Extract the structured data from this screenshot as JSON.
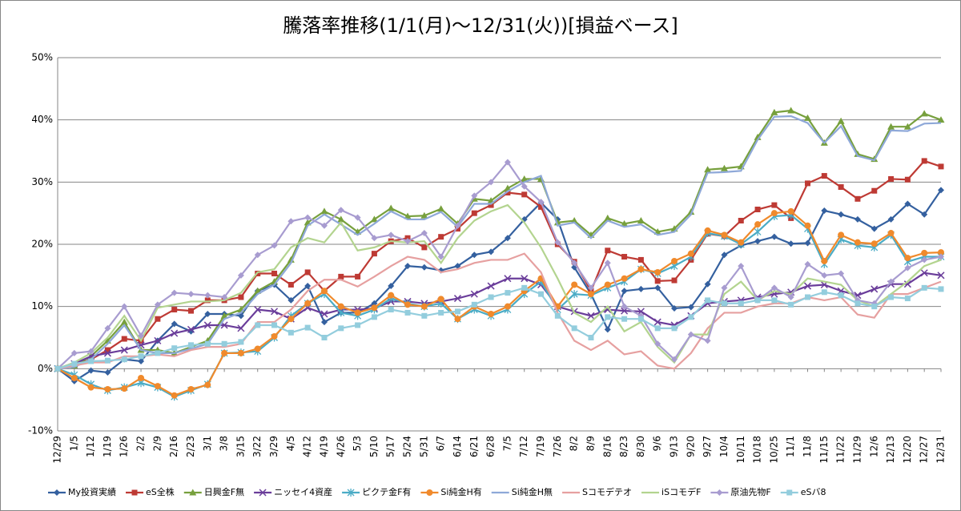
{
  "chart_data": {
    "type": "line",
    "title": "騰落率推移(1/1(月)～12/31(火))[損益ベース]",
    "categories": [
      "12/29",
      "1/5",
      "1/12",
      "1/19",
      "1/26",
      "2/2",
      "2/9",
      "2/16",
      "2/23",
      "3/1",
      "3/8",
      "3/15",
      "3/22",
      "3/29",
      "4/5",
      "4/12",
      "4/19",
      "4/26",
      "5/3",
      "5/10",
      "5/17",
      "5/24",
      "5/31",
      "6/7",
      "6/14",
      "6/21",
      "6/28",
      "7/5",
      "7/12",
      "7/19",
      "7/26",
      "8/2",
      "8/9",
      "8/16",
      "8/23",
      "8/30",
      "9/6",
      "9/13",
      "9/20",
      "9/27",
      "10/4",
      "10/11",
      "10/18",
      "10/25",
      "11/1",
      "11/8",
      "11/15",
      "11/22",
      "11/29",
      "12/6",
      "12/13",
      "12/20",
      "12/27",
      "12/31"
    ],
    "ylim": [
      -10,
      50
    ],
    "yticks": [
      {
        "value": -10,
        "label": "-10%"
      },
      {
        "value": 0,
        "label": "0%"
      },
      {
        "value": 10,
        "label": "10%"
      },
      {
        "value": 20,
        "label": "20%"
      },
      {
        "value": 30,
        "label": "30%"
      },
      {
        "value": 40,
        "label": "40%"
      },
      {
        "value": 50,
        "label": "50%"
      }
    ],
    "grid": true,
    "legend": "bottom",
    "series": [
      {
        "name": "My投資実績",
        "color": "#34609f",
        "marker": "diamond",
        "values": [
          0,
          -2,
          -0.3,
          -0.6,
          1.5,
          1.2,
          4.5,
          7.2,
          6,
          8.8,
          8.8,
          8.5,
          12.5,
          13.5,
          11,
          13.3,
          7.5,
          9,
          9,
          10.5,
          13.3,
          16.5,
          16.3,
          15.8,
          16.5,
          18.3,
          18.8,
          21,
          24,
          26.7,
          24,
          16.3,
          12,
          6.3,
          12.5,
          12.8,
          13,
          9.7,
          9.9,
          13.6,
          18.3,
          19.8,
          20.5,
          21.2,
          20.1,
          20.2,
          25.4,
          24.8,
          24,
          22.5,
          24,
          26.5,
          24.8,
          28.7
        ]
      },
      {
        "name": "eS全株",
        "color": "#be3a34",
        "marker": "square",
        "values": [
          0,
          0.5,
          1.5,
          3,
          4.8,
          4.5,
          8,
          9.5,
          9.3,
          11,
          11,
          11.5,
          15.3,
          15.3,
          13.5,
          15.5,
          12.5,
          14.8,
          14.8,
          18.5,
          20.5,
          21,
          19.5,
          21.2,
          22.5,
          25,
          26.3,
          28.3,
          28,
          26,
          20,
          17.2,
          12.5,
          19,
          18,
          17.5,
          14.1,
          14.2,
          17.5,
          21.7,
          21.3,
          23.8,
          25.6,
          26.3,
          24.2,
          29.8,
          31,
          29.2,
          27.3,
          28.6,
          30.5,
          30.4,
          33.4,
          32.5
        ]
      },
      {
        "name": "日興金F無",
        "color": "#77a03d",
        "marker": "triangle",
        "values": [
          0,
          0.5,
          2,
          4.5,
          7.5,
          3,
          3,
          2.5,
          3.5,
          4.5,
          8.5,
          9.5,
          12.5,
          14,
          17.5,
          23.5,
          25.3,
          24,
          22,
          24,
          25.8,
          24.5,
          24.6,
          25.7,
          23.3,
          27.3,
          27,
          29,
          30.5,
          30.5,
          23.5,
          23.8,
          21.5,
          24.2,
          23.3,
          23.8,
          22,
          22.5,
          25.2,
          32,
          32.2,
          32.5,
          37.2,
          41.2,
          41.5,
          40.3,
          36.3,
          39.8,
          34.5,
          33.7,
          38.9,
          38.9,
          41,
          40
        ]
      },
      {
        "name": "ニッセイ4資産",
        "color": "#6a3d9a",
        "marker": "x",
        "values": [
          0,
          0.8,
          2,
          2.5,
          3,
          3.8,
          4.5,
          5.7,
          6.3,
          7,
          7,
          6.5,
          9.5,
          9.2,
          8,
          9.8,
          8.8,
          9.5,
          9.5,
          9.7,
          10.8,
          10.8,
          10.5,
          10.8,
          11.3,
          12,
          13.3,
          14.5,
          14.5,
          13.5,
          10,
          9.2,
          8.5,
          9.5,
          9.3,
          9.2,
          7.5,
          7,
          8.5,
          10.5,
          10.8,
          11,
          11.5,
          12,
          12.3,
          13.3,
          13.5,
          12.5,
          11.8,
          12.8,
          13.6,
          13.6,
          15.4,
          15
        ]
      },
      {
        "name": "ピクテ金F有",
        "color": "#4bacc6",
        "marker": "star",
        "values": [
          0,
          -1,
          -2.5,
          -3.5,
          -3,
          -2.3,
          -3,
          -4.5,
          -3.5,
          -2.5,
          2.5,
          2.6,
          2.8,
          5,
          8.5,
          10.5,
          12,
          9,
          8.5,
          9.5,
          11.3,
          10.5,
          10,
          10.5,
          8,
          9.5,
          8.5,
          9.5,
          12,
          14,
          9.5,
          12,
          11.8,
          13,
          14,
          16,
          15.3,
          16.5,
          18,
          21.8,
          21.3,
          20,
          22,
          24.5,
          24.7,
          22.5,
          16.8,
          20.8,
          19.8,
          19.5,
          21.5,
          17.2,
          18,
          18
        ]
      },
      {
        "name": "Si純金H有",
        "color": "#f08a2c",
        "marker": "circle",
        "values": [
          0,
          -1.5,
          -3,
          -3.3,
          -3.2,
          -1.5,
          -2.8,
          -4.3,
          -3.3,
          -2.6,
          2.5,
          2.5,
          3.2,
          5.2,
          8,
          10.5,
          12.5,
          10,
          9,
          9.8,
          11.8,
          10.3,
          10,
          11.2,
          8,
          10,
          8.8,
          10,
          12.5,
          14.5,
          10,
          13.5,
          12,
          13.5,
          14.5,
          16,
          15.5,
          17.3,
          18.5,
          22.2,
          21.5,
          20.3,
          23.2,
          25,
          25.3,
          23,
          17.3,
          21.5,
          20.3,
          20.1,
          21.8,
          17.8,
          18.6,
          18.7
        ]
      },
      {
        "name": "Si純金H無",
        "color": "#8ea8d8",
        "marker": "none",
        "values": [
          0,
          0.3,
          1.5,
          4,
          7,
          3,
          2.5,
          2.5,
          3.2,
          4,
          8,
          9,
          12,
          13.5,
          17,
          23,
          24.8,
          23.2,
          21.5,
          23.3,
          25.3,
          24,
          24,
          25.2,
          22.8,
          26.5,
          26.5,
          28.5,
          30,
          31,
          23,
          23.5,
          21,
          23.8,
          22.8,
          23.2,
          21.5,
          22,
          24.8,
          31.5,
          31.6,
          31.8,
          36.8,
          40.5,
          40.6,
          39.5,
          36.3,
          39,
          34.2,
          33.5,
          38.3,
          38.2,
          39.4,
          39.5
        ]
      },
      {
        "name": "Sコモデテオ",
        "color": "#e6a0a0",
        "marker": "none",
        "values": [
          0,
          0.5,
          1,
          1,
          2,
          2,
          2.3,
          2,
          3,
          3.5,
          3.5,
          4,
          7.5,
          7.5,
          9.5,
          12.5,
          14.3,
          14.3,
          13.2,
          14.8,
          16.5,
          18,
          17.5,
          15.5,
          16,
          17,
          17.5,
          17.5,
          18.5,
          15.5,
          9,
          4.5,
          3,
          4.5,
          2.3,
          2.8,
          0.5,
          0,
          2.5,
          6.5,
          9,
          9,
          10,
          10.5,
          10.5,
          11.5,
          11,
          11.5,
          8.7,
          8.2,
          12,
          12,
          13,
          14
        ]
      },
      {
        "name": "iSコモデF",
        "color": "#b3d48f",
        "marker": "none",
        "values": [
          0,
          1,
          2.5,
          5,
          8.5,
          4.5,
          9.8,
          10.3,
          10.8,
          10.8,
          11,
          12.2,
          15.5,
          16,
          19.5,
          21,
          20.3,
          23.5,
          19,
          19.5,
          20.5,
          20.3,
          20.5,
          17,
          21,
          23.8,
          25.3,
          26.3,
          23.5,
          19.5,
          14.5,
          9,
          7.5,
          10,
          6,
          7.5,
          3.5,
          1,
          5.5,
          5.5,
          12,
          14,
          11,
          12.5,
          12,
          14.5,
          14,
          13.5,
          11,
          10,
          12,
          14,
          16.5,
          17.5
        ]
      },
      {
        "name": "原油先物F",
        "color": "#a89cd0",
        "marker": "diamond",
        "values": [
          0,
          2.5,
          2.8,
          6.5,
          10,
          5.3,
          10.3,
          12.2,
          12,
          11.8,
          11.5,
          15,
          18.3,
          19.8,
          23.7,
          24.3,
          23,
          25.5,
          24.3,
          21,
          21.5,
          20.5,
          21.8,
          18,
          23,
          27.8,
          30,
          33.2,
          29.3,
          26.8,
          20.3,
          17,
          13,
          17,
          10,
          8.5,
          4,
          1.5,
          5.5,
          4.5,
          13,
          16.5,
          11,
          13,
          11.5,
          16.8,
          15,
          15.3,
          11,
          10.5,
          14,
          16.2,
          17.5,
          18
        ]
      },
      {
        "name": "eSバ8",
        "color": "#93cddd",
        "marker": "square",
        "values": [
          0,
          0.8,
          1.2,
          1.3,
          1.5,
          2,
          2.5,
          3.3,
          3.8,
          4,
          4,
          4.3,
          7,
          7,
          5.8,
          6.6,
          5,
          6.5,
          7,
          8.3,
          9.5,
          9,
          8.5,
          9,
          9.2,
          10.3,
          11.5,
          12.2,
          13,
          12,
          8.5,
          6.5,
          5,
          8.3,
          8,
          8,
          6.5,
          6.5,
          8.3,
          11,
          10.5,
          10.5,
          11,
          11,
          10.3,
          11.5,
          12.3,
          11.8,
          10.5,
          10,
          11.5,
          11.3,
          13,
          12.8
        ]
      }
    ]
  }
}
